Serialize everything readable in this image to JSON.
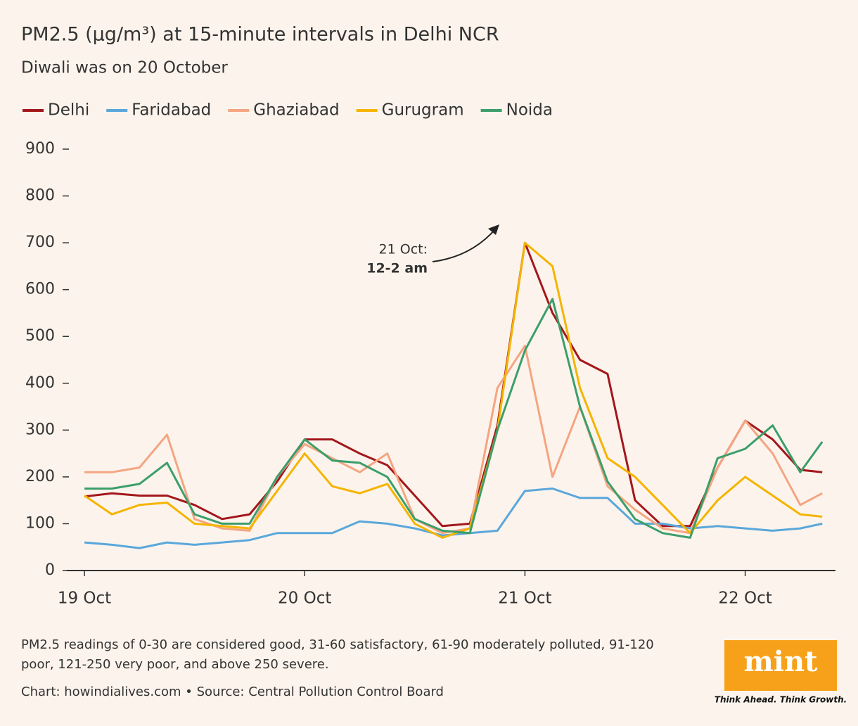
{
  "chart_data": {
    "type": "line",
    "title": "PM2.5 (µg/m³) at 15-minute intervals in Delhi NCR",
    "subtitle": "Diwali was on 20 October",
    "x": [
      0,
      0.125,
      0.25,
      0.375,
      0.5,
      0.625,
      0.75,
      0.875,
      1,
      1.125,
      1.25,
      1.375,
      1.5,
      1.625,
      1.75,
      1.875,
      2,
      2.125,
      2.25,
      2.375,
      2.5,
      2.625,
      2.75,
      2.875,
      3,
      3.125,
      3.25,
      3.35
    ],
    "series": [
      {
        "name": "Delhi",
        "color": "#a3171c",
        "values": [
          158,
          165,
          160,
          160,
          140,
          110,
          120,
          190,
          280,
          280,
          250,
          225,
          160,
          95,
          100,
          310,
          700,
          550,
          450,
          420,
          150,
          95,
          95,
          220,
          320,
          280,
          215,
          210
        ]
      },
      {
        "name": "Faridabad",
        "color": "#5aa7db",
        "values": [
          60,
          55,
          48,
          60,
          55,
          60,
          65,
          80,
          80,
          80,
          105,
          100,
          90,
          75,
          80,
          85,
          170,
          175,
          155,
          155,
          100,
          100,
          90,
          95,
          90,
          85,
          90,
          100
        ]
      },
      {
        "name": "Ghaziabad",
        "color": "#f4a582",
        "values": [
          210,
          210,
          220,
          290,
          110,
          90,
          85,
          200,
          270,
          240,
          210,
          250,
          110,
          80,
          90,
          390,
          480,
          200,
          350,
          180,
          130,
          90,
          80,
          220,
          320,
          250,
          140,
          165
        ]
      },
      {
        "name": "Gurugram",
        "color": "#f5b400",
        "values": [
          160,
          120,
          140,
          145,
          100,
          95,
          90,
          170,
          250,
          180,
          165,
          185,
          100,
          70,
          90,
          300,
          700,
          650,
          390,
          240,
          200,
          140,
          80,
          150,
          200,
          160,
          120,
          115
        ]
      },
      {
        "name": "Noida",
        "color": "#3c9e6b",
        "values": [
          175,
          175,
          185,
          230,
          120,
          100,
          100,
          200,
          280,
          235,
          230,
          200,
          110,
          85,
          80,
          300,
          470,
          580,
          350,
          190,
          110,
          80,
          70,
          240,
          260,
          310,
          210,
          275
        ]
      }
    ],
    "xlim": [
      -0.08,
      3.41
    ],
    "xticks": [
      {
        "value": 0,
        "label": "19 Oct"
      },
      {
        "value": 1,
        "label": "20 Oct"
      },
      {
        "value": 2,
        "label": "21 Oct"
      },
      {
        "value": 3,
        "label": "22 Oct"
      }
    ],
    "ylim": [
      0,
      900
    ],
    "yticks": [
      0,
      100,
      200,
      300,
      400,
      500,
      600,
      700,
      800,
      900
    ],
    "annotation": [
      "21 Oct:",
      "12-2 am"
    ],
    "note": [
      "PM2.5 readings of 0-30 are considered good, 31-60 satisfactory, 61-90 moderately polluted, 91-120",
      "poor, 121-250 very poor, and above 250 severe."
    ],
    "source": "Chart: howindialives.com • Source: Central Pollution Control Board",
    "logo": {
      "name": "mint",
      "tagline": "Think Ahead. Think Growth."
    }
  }
}
